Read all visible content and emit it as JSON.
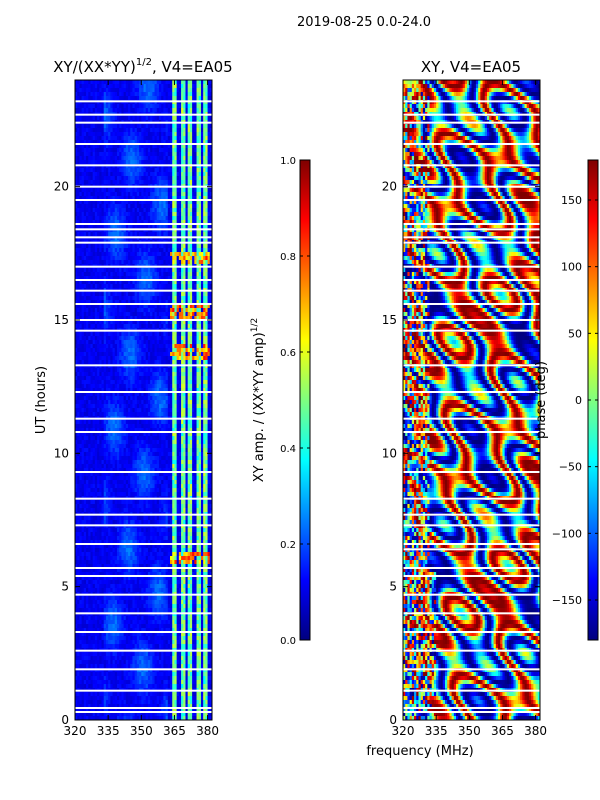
{
  "figure_title": "2019-08-25 0.0-24.0",
  "shared_xlabel": "frequency (MHz)",
  "chart_data": [
    {
      "type": "heatmap",
      "title": "XY/(XX*YY)^1/2, V4=EA05",
      "title_main": "XY/(XX*YY)",
      "title_sup": "1/2",
      "title_tail": ", V4=EA05",
      "xlabel": "frequency (MHz)",
      "ylabel": "UT (hours)",
      "xlim": [
        320,
        382
      ],
      "ylim": [
        0,
        24
      ],
      "xticks": [
        320,
        335,
        350,
        365,
        380
      ],
      "yticks": [
        0,
        5,
        10,
        15,
        20
      ],
      "colorbar": {
        "label": "XY amp. / (XX*YY amp)^1/2",
        "label_main": "XY amp. / (XX*YY amp)",
        "label_sup": "1/2",
        "range": [
          0.0,
          1.0
        ],
        "ticks": [
          "0.0",
          "0.2",
          "0.4",
          "0.6",
          "0.8",
          "1.0"
        ],
        "colormap": "jet"
      },
      "description_values": {
        "background_amplitude": 0.05,
        "bright_channels_mhz": [
          365,
          369,
          372,
          376,
          379
        ],
        "bright_amplitude": 0.5,
        "hot_spots_hours": [
          17.3,
          15.3,
          13.8,
          6.1
        ]
      },
      "flagged_hours": [
        0.3,
        0.45,
        1.1,
        1.9,
        2.6,
        3.3,
        4.0,
        4.7,
        5.4,
        5.7,
        6.6,
        7.3,
        7.7,
        8.3,
        9.3,
        10.8,
        11.3,
        12.3,
        13.3,
        14.6,
        15.0,
        15.6,
        16.1,
        16.5,
        17.0,
        17.9,
        18.1,
        18.4,
        18.6,
        19.5,
        20.0,
        20.8,
        21.6,
        22.4,
        22.7,
        23.2
      ]
    },
    {
      "type": "heatmap",
      "title": "XY, V4=EA05",
      "xlabel": "frequency (MHz)",
      "ylabel": "",
      "xlim": [
        320,
        382
      ],
      "ylim": [
        0,
        24
      ],
      "xticks": [
        320,
        335,
        350,
        365,
        380
      ],
      "yticks": [
        0,
        5,
        10,
        15,
        20
      ],
      "colorbar": {
        "label": "phase (deg)",
        "range": [
          -180,
          180
        ],
        "ticks": [
          "−150",
          "−100",
          "−50",
          "0",
          "50",
          "100",
          "150"
        ],
        "tick_values": [
          -150,
          -100,
          -50,
          0,
          50,
          100,
          150
        ],
        "colormap": "jet"
      },
      "flagged_hours": [
        0.3,
        0.45,
        1.1,
        1.9,
        2.6,
        3.3,
        4.0,
        4.7,
        5.4,
        5.7,
        6.4,
        6.6,
        7.3,
        7.7,
        8.3,
        9.3,
        10.8,
        11.3,
        12.3,
        13.3,
        14.6,
        15.0,
        15.6,
        16.1,
        16.5,
        17.0,
        17.9,
        18.1,
        18.4,
        18.6,
        19.5,
        20.0,
        20.8,
        21.6,
        22.4,
        22.7,
        23.2
      ]
    }
  ]
}
